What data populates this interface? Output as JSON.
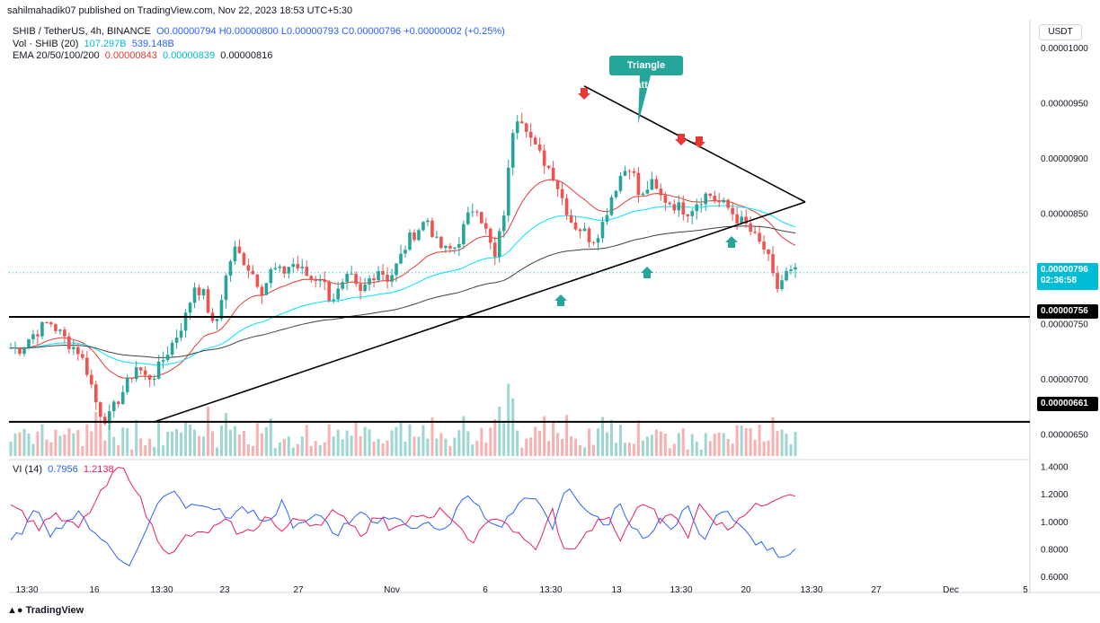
{
  "header": {
    "publisher": "sahilmahadik07 published on TradingView.com, Nov 22, 2023 18:53 UTC+5:30",
    "symbol": "SHIB / TetherUS, 4h, BINANCE",
    "ohlc": "O0.00000794 H0.00000800 L0.00000793 C0.00000796 +0.00000002 (+0.25%)",
    "vol_label": "Vol · SHIB (20)",
    "vol_value1": "107.297B",
    "vol_value2": "539.148B",
    "ema_label": "EMA 20/50/100/200",
    "ema_20": "0.00000843",
    "ema_50": "0.00000839",
    "ema_100": "0.00000816",
    "vi_label": "VI (14)",
    "vi_plus": "0.7956",
    "vi_minus": "1.2138",
    "currency": "USDT",
    "callout": "Triangle Pattern",
    "footer": "TradingView"
  },
  "colors": {
    "up": "#26a69a",
    "down": "#ef5350",
    "ema20": "#e53935",
    "ema50": "#00e5ff",
    "ema100": "#424242",
    "vi_plus": "#2962ff",
    "vi_minus": "#e91e63"
  },
  "price_badges": {
    "current": "0.00000796",
    "countdown": "02:36:58",
    "level1": "0.00000756",
    "level2": "0.00000661"
  },
  "chart_data": {
    "type": "candlestick",
    "price_axis": {
      "ylim": [
        6.3e-06,
        1.025e-05
      ],
      "ticks": [
        "0.00001000",
        "0.00000950",
        "0.00000900",
        "0.00000850",
        "0.00000750",
        "0.00000700",
        "0.00000650"
      ]
    },
    "vi_axis": {
      "ylim": [
        0.58,
        1.45
      ],
      "ticks": [
        "1.4000",
        "1.2000",
        "1.0000",
        "0.8000",
        "0.6000"
      ]
    },
    "x_ticks": [
      "13:30",
      "16",
      "13:30",
      "23",
      "27",
      "Nov",
      "6",
      "13:30",
      "13",
      "13:30",
      "20",
      "13:30",
      "27",
      "Dec",
      "5"
    ],
    "horizontal_levels": [
      7.56e-06,
      6.61e-06
    ],
    "triangle": {
      "lower_start": 6.61e-06,
      "upper_start": 9.65e-06,
      "apex": 8.6e-06
    },
    "close_anchors": [
      7.28e-06,
      7.27e-06,
      7.38e-06,
      7.45e-06,
      7.52e-06,
      7.42e-06,
      7.32e-06,
      7.25e-06,
      7.05e-06,
      6.72e-06,
      6.62e-06,
      6.8e-06,
      6.95e-06,
      7.12e-06,
      7e-06,
      7.05e-06,
      7.22e-06,
      7.37e-06,
      7.55e-06,
      7.85e-06,
      7.75e-06,
      7.42e-06,
      7.85e-06,
      8.18e-06,
      8.08e-06,
      7.95e-06,
      7.8e-06,
      8e-06,
      7.95e-06,
      8.05e-06,
      7.98e-06,
      7.9e-06,
      7.93e-06,
      7.72e-06,
      7.8e-06,
      7.93e-06,
      7.75e-06,
      7.9e-06,
      8e-06,
      7.9e-06,
      8.05e-06,
      8.25e-06,
      8.35e-06,
      8.45e-06,
      8.22e-06,
      8.15e-06,
      8.2e-06,
      8.42e-06,
      8.6e-06,
      8.35e-06,
      8.08e-06,
      8.55e-06,
      9.4e-06,
      9.35e-06,
      9.1e-06,
      8.98e-06,
      8.85e-06,
      8.62e-06,
      8.4e-06,
      8.35e-06,
      8.25e-06,
      8.38e-06,
      8.65e-06,
      8.85e-06,
      8.95e-06,
      8.6e-06,
      8.78e-06,
      8.65e-06,
      8.6e-06,
      8.55e-06,
      8.52e-06,
      8.62e-06,
      8.68e-06,
      8.6e-06,
      8.55e-06,
      8.45e-06,
      8.38e-06,
      8.25e-06,
      8.15e-06,
      7.8e-06,
      7.95e-06,
      7.96e-06
    ],
    "vi_plus_anchors": [
      0.85,
      0.95,
      1.1,
      0.9,
      1.0,
      1.05,
      0.95,
      0.85,
      0.72,
      0.7,
      0.95,
      1.15,
      1.25,
      1.1,
      1.15,
      1.1,
      1.02,
      1.1,
      1.05,
      0.95,
      1.15,
      0.95,
      1.0,
      1.05,
      0.9,
      1.0,
      1.1,
      0.95,
      1.05,
      1.0,
      0.95,
      1.0,
      0.9,
      1.1,
      1.2,
      1.05,
      0.95,
      1.05,
      1.15,
      1.2,
      0.9,
      1.25,
      1.15,
      1.05,
      0.95,
      1.15,
      0.95,
      0.85,
      1.0,
      0.9,
      1.15,
      0.85,
      1.0,
      1.1,
      0.95,
      0.85,
      0.8,
      0.75,
      0.8
    ],
    "vi_minus_anchors": [
      1.15,
      1.05,
      0.95,
      1.05,
      1.0,
      0.95,
      1.1,
      1.25,
      1.4,
      1.3,
      1.05,
      0.85,
      0.75,
      0.9,
      0.9,
      0.95,
      1.0,
      0.9,
      0.95,
      1.05,
      0.9,
      1.05,
      1.0,
      0.95,
      1.1,
      1.0,
      0.9,
      1.05,
      0.95,
      1.0,
      1.05,
      1.0,
      1.1,
      0.95,
      0.85,
      0.95,
      1.05,
      0.95,
      0.85,
      0.8,
      1.1,
      0.75,
      0.85,
      0.95,
      1.05,
      0.85,
      1.05,
      1.15,
      1.0,
      1.1,
      0.85,
      1.15,
      1.0,
      0.95,
      1.05,
      1.1,
      1.15,
      1.2,
      1.21
    ]
  }
}
